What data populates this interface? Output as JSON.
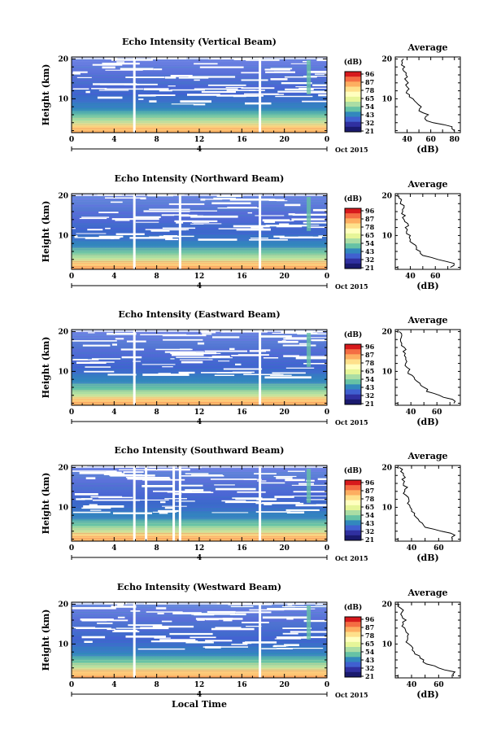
{
  "figure": {
    "common_xlabel": "Local Time",
    "date_label": "Oct 2015",
    "day_label": "4",
    "colorbar_unit": "(dB)",
    "colorbar_ticks": [
      "96",
      "87",
      "78",
      "65",
      "54",
      "43",
      "32",
      "21"
    ],
    "colorbar_colors": [
      "#d7191c",
      "#f46d43",
      "#fdae61",
      "#fee08b",
      "#ffffbf",
      "#e6f598",
      "#abdda4",
      "#66c2a5",
      "#3288bd",
      "#4060d0",
      "#3030a0",
      "#1a1a6e"
    ],
    "avg_title": "Average",
    "avg_xlabel": "(dB)"
  },
  "chart_data": [
    {
      "type": "heatmap",
      "title": "Echo Intensity (Vertical Beam)",
      "xlabel": "",
      "ylabel": "Height (km)",
      "x_ticks": [
        "0",
        "4",
        "8",
        "12",
        "16",
        "20",
        "0"
      ],
      "y_ticks": [
        "20",
        "10"
      ],
      "xlim": [
        0,
        24
      ],
      "ylim": [
        1.5,
        20.5
      ],
      "colorbar_range": [
        21,
        96
      ],
      "gaps_hours": [
        5.9,
        17.7
      ],
      "average_profile": {
        "x_ticks": [
          "40",
          "60",
          "80"
        ],
        "xlim": [
          30,
          85
        ],
        "y_ticks": [
          "20",
          "10"
        ],
        "height_km": [
          2,
          3,
          4,
          5,
          6,
          7,
          8,
          9,
          10,
          11,
          12,
          13,
          14,
          15,
          16,
          17,
          18,
          19,
          20
        ],
        "values_db": [
          80,
          78,
          62,
          55,
          58,
          50,
          52,
          48,
          45,
          42,
          40,
          40,
          41,
          38,
          39,
          37,
          38,
          36,
          37
        ]
      }
    },
    {
      "type": "heatmap",
      "title": "Echo Intensity (Northward Beam)",
      "xlabel": "",
      "ylabel": "Height (km)",
      "x_ticks": [
        "0",
        "4",
        "8",
        "12",
        "16",
        "20",
        "0"
      ],
      "y_ticks": [
        "20",
        "10"
      ],
      "xlim": [
        0,
        24
      ],
      "ylim": [
        1.5,
        20.5
      ],
      "colorbar_range": [
        21,
        96
      ],
      "gaps_hours": [
        5.9,
        10.2,
        17.7
      ],
      "average_profile": {
        "x_ticks": [
          "40",
          "60"
        ],
        "xlim": [
          28,
          80
        ],
        "y_ticks": [
          "20",
          "10"
        ],
        "height_km": [
          2,
          3,
          4,
          5,
          6,
          7,
          8,
          9,
          10,
          11,
          12,
          13,
          14,
          15,
          16,
          17,
          18,
          19,
          20
        ],
        "values_db": [
          72,
          75,
          62,
          50,
          48,
          45,
          42,
          40,
          40,
          37,
          36,
          38,
          35,
          36,
          34,
          35,
          32,
          33,
          31
        ]
      }
    },
    {
      "type": "heatmap",
      "title": "Echo Intensity (Eastward Beam)",
      "xlabel": "",
      "ylabel": "Height (km)",
      "x_ticks": [
        "0",
        "4",
        "8",
        "12",
        "16",
        "20",
        "0"
      ],
      "y_ticks": [
        "20",
        "10"
      ],
      "xlim": [
        0,
        24
      ],
      "ylim": [
        1.5,
        20.5
      ],
      "colorbar_range": [
        21,
        96
      ],
      "gaps_hours": [
        5.9,
        17.7
      ],
      "average_profile": {
        "x_ticks": [
          "40",
          "60"
        ],
        "xlim": [
          28,
          78
        ],
        "y_ticks": [
          "20",
          "10"
        ],
        "height_km": [
          2,
          3,
          4,
          5,
          6,
          7,
          8,
          9,
          10,
          11,
          12,
          13,
          14,
          15,
          16,
          17,
          18,
          19,
          20
        ],
        "values_db": [
          73,
          72,
          62,
          52,
          50,
          47,
          43,
          41,
          38,
          37,
          36,
          36,
          35,
          34,
          35,
          33,
          32,
          33,
          31
        ]
      }
    },
    {
      "type": "heatmap",
      "title": "Echo Intensity (Southward Beam)",
      "xlabel": "",
      "ylabel": "Height (km)",
      "x_ticks": [
        "0",
        "4",
        "8",
        "12",
        "16",
        "20",
        "0"
      ],
      "y_ticks": [
        "20",
        "10"
      ],
      "xlim": [
        0,
        24
      ],
      "ylim": [
        1.5,
        20.5
      ],
      "colorbar_range": [
        21,
        96
      ],
      "gaps_hours": [
        5.9,
        7.0,
        9.6,
        10.2,
        17.7
      ],
      "average_profile": {
        "x_ticks": [
          "40",
          "60"
        ],
        "xlim": [
          28,
          76
        ],
        "y_ticks": [
          "20",
          "10"
        ],
        "height_km": [
          2,
          3,
          4,
          5,
          6,
          7,
          8,
          9,
          10,
          11,
          12,
          13,
          14,
          15,
          16,
          17,
          18,
          19,
          20
        ],
        "values_db": [
          70,
          72,
          62,
          50,
          48,
          45,
          42,
          40,
          39,
          37,
          38,
          36,
          35,
          37,
          34,
          33,
          34,
          32,
          31
        ]
      }
    },
    {
      "type": "heatmap",
      "title": "Echo Intensity (Westward Beam)",
      "xlabel": "Local Time",
      "ylabel": "Height (km)",
      "x_ticks": [
        "0",
        "4",
        "8",
        "12",
        "16",
        "20",
        "0"
      ],
      "y_ticks": [
        "20",
        "10"
      ],
      "xlim": [
        0,
        24
      ],
      "ylim": [
        1.5,
        20.5
      ],
      "colorbar_range": [
        21,
        96
      ],
      "gaps_hours": [
        5.9,
        17.7
      ],
      "average_profile": {
        "x_ticks": [
          "40",
          "60"
        ],
        "xlim": [
          28,
          76
        ],
        "y_ticks": [
          "20",
          "10"
        ],
        "height_km": [
          2,
          3,
          4,
          5,
          6,
          7,
          8,
          9,
          10,
          11,
          12,
          13,
          14,
          15,
          16,
          17,
          18,
          19,
          20
        ],
        "values_db": [
          71,
          72,
          60,
          51,
          49,
          46,
          42,
          41,
          38,
          37,
          37,
          36,
          35,
          34,
          36,
          33,
          33,
          32,
          31
        ]
      }
    }
  ]
}
